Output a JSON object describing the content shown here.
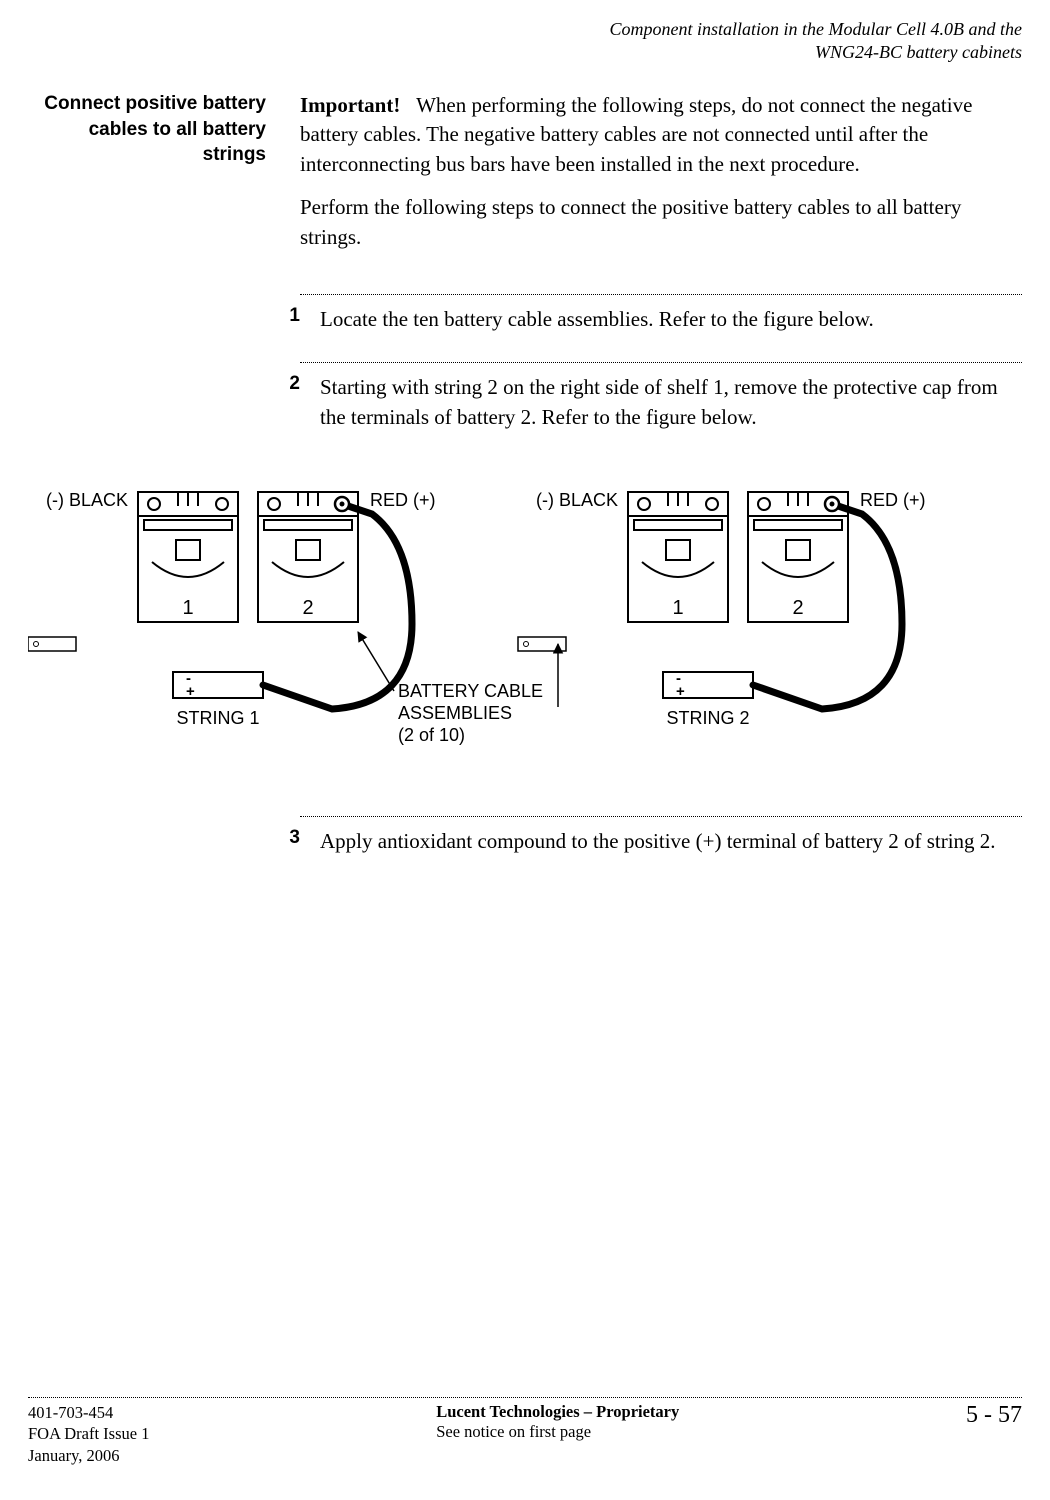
{
  "header": {
    "line1": "Component installation in the Modular Cell 4.0B and the",
    "line2": "WNG24-BC battery cabinets"
  },
  "section_heading": "Connect positive battery cables to all battery strings",
  "intro": {
    "important_label": "Important!",
    "important_text": "When performing the following steps, do not connect the negative battery cables. The negative battery cables are not connected until after the interconnecting bus bars have been installed in the next procedure.",
    "perform_text": "Perform the following steps to connect the positive battery cables to all battery strings."
  },
  "steps": [
    {
      "num": "1",
      "text": "Locate the ten battery cable assemblies. Refer to the figure below."
    },
    {
      "num": "2",
      "text": "Starting with string 2 on the right side of shelf 1, remove the protective cap from the terminals of battery 2. Refer to the figure below."
    },
    {
      "num": "3",
      "text": "Apply antioxidant compound to the positive (+) terminal of battery 2 of string 2."
    }
  ],
  "figure": {
    "neg_black": "(-) BLACK",
    "red_pos": "RED (+)",
    "string1": "STRING 1",
    "string2": "STRING 2",
    "cable_label_l1": "BATTERY CABLE",
    "cable_label_l2": "ASSEMBLIES",
    "cable_label_l3": "(2 of 10)",
    "bat1": "1",
    "bat2": "2",
    "minus": "-",
    "plus": "+",
    "label_font_size": 18,
    "stroke": "#000000",
    "cable_width": 7
  },
  "footer": {
    "doc_num": "401-703-454",
    "issue": "FOA Draft Issue 1",
    "date": "January, 2006",
    "proprietary": "Lucent Technologies – Proprietary",
    "notice": "See notice on first page",
    "page": "5 - 57"
  }
}
